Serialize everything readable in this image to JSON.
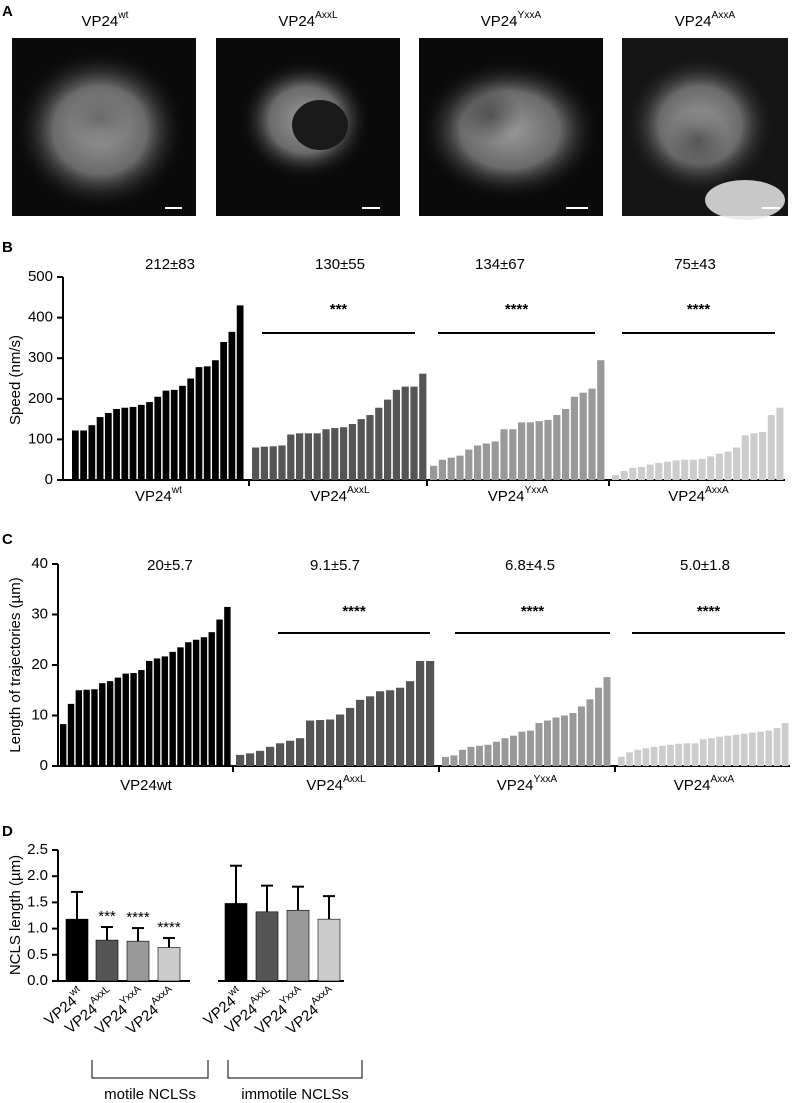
{
  "panel_labels": [
    "A",
    "B",
    "C",
    "D"
  ],
  "images": [
    {
      "label": {
        "text": "VP24",
        "sup": "wt"
      }
    },
    {
      "label": {
        "text": "VP24",
        "sup": "AxxL"
      }
    },
    {
      "label": {
        "text": "VP24",
        "sup": "YxxA"
      }
    },
    {
      "label": {
        "text": "VP24",
        "sup": "AxxA"
      }
    }
  ],
  "chart_data": [
    {
      "type": "bar",
      "y_label": "Speed (nm/s)",
      "ylim": [
        0,
        500
      ],
      "yticks": [
        0,
        100,
        200,
        300,
        400,
        500
      ],
      "series": [
        {
          "label": {
            "text": "VP24",
            "sup": "wt"
          },
          "color": "#000000",
          "annotation": "212±83",
          "values": [
            122,
            122,
            135,
            155,
            165,
            175,
            178,
            180,
            185,
            192,
            205,
            220,
            222,
            232,
            250,
            278,
            280,
            295,
            340,
            365,
            430
          ]
        },
        {
          "label": {
            "text": "VP24",
            "sup": "AxxL"
          },
          "color": "#555555",
          "annotation": "130±55",
          "significance": "***",
          "values": [
            80,
            82,
            83,
            85,
            112,
            115,
            115,
            115,
            125,
            128,
            130,
            138,
            150,
            160,
            178,
            198,
            222,
            230,
            230,
            262
          ]
        },
        {
          "label": {
            "text": "VP24",
            "sup": "YxxA"
          },
          "color": "#999999",
          "annotation": "134±67",
          "significance": "****",
          "values": [
            35,
            50,
            55,
            60,
            75,
            85,
            90,
            95,
            125,
            125,
            142,
            142,
            145,
            148,
            160,
            175,
            205,
            215,
            225,
            295
          ]
        },
        {
          "label": {
            "text": "VP24",
            "sup": "AxxA"
          },
          "color": "#cccccc",
          "annotation": "75±43",
          "significance": "****",
          "values": [
            12,
            22,
            30,
            32,
            38,
            42,
            45,
            48,
            50,
            50,
            52,
            58,
            65,
            70,
            80,
            110,
            115,
            118,
            160,
            178
          ]
        }
      ]
    },
    {
      "type": "bar",
      "y_label": "Length of trajectories (µm)",
      "ylim": [
        0,
        40
      ],
      "yticks": [
        0,
        10,
        20,
        30,
        40
      ],
      "series": [
        {
          "label": "VP24wt",
          "color": "#000000",
          "annotation": "20±5.7",
          "values": [
            8.3,
            12.3,
            15,
            15.1,
            15.2,
            16.4,
            16.8,
            17.5,
            18.3,
            18.4,
            19,
            20.8,
            21.3,
            21.7,
            22.6,
            23.5,
            24.5,
            25,
            25.5,
            26.5,
            29,
            31.5
          ]
        },
        {
          "label": {
            "text": "VP24",
            "sup": "AxxL"
          },
          "color": "#555555",
          "annotation": "9.1±5.7",
          "significance": "****",
          "values": [
            2.2,
            2.5,
            3,
            3.8,
            4.5,
            5,
            5.5,
            9,
            9.1,
            9.2,
            10.2,
            11.5,
            13.1,
            13.8,
            14.8,
            15,
            15.5,
            16.8,
            20.8,
            20.8
          ]
        },
        {
          "label": {
            "text": "VP24",
            "sup": "YxxA"
          },
          "color": "#999999",
          "annotation": "6.8±4.5",
          "significance": "****",
          "values": [
            1.8,
            2.1,
            3.2,
            3.8,
            4,
            4.2,
            4.8,
            5.5,
            6,
            6.8,
            7,
            8.5,
            9,
            9.6,
            10,
            10.5,
            11.8,
            13.2,
            15.5,
            17.6
          ]
        },
        {
          "label": {
            "text": "VP24",
            "sup": "AxxA"
          },
          "color": "#cccccc",
          "annotation": "5.0±1.8",
          "significance": "****",
          "values": [
            1.8,
            2.7,
            3.2,
            3.5,
            3.8,
            4,
            4.2,
            4.4,
            4.5,
            4.5,
            5.3,
            5.5,
            5.8,
            6,
            6.2,
            6.4,
            6.6,
            6.8,
            7,
            7.5,
            8.5
          ]
        }
      ]
    },
    {
      "type": "bar",
      "y_label": "NCLS length (µm)",
      "ylim": [
        0,
        2.5
      ],
      "yticks": [
        {
          "value": 0,
          "label": "0.0"
        },
        0.5,
        {
          "value": 1,
          "label": "1.0"
        },
        1.5,
        {
          "value": 2,
          "label": "2.0"
        },
        2.5
      ],
      "categories": [
        {
          "text": "VP24",
          "sup": "wt"
        },
        {
          "text": "VP24",
          "sup": "AxxL"
        },
        {
          "text": "VP24",
          "sup": "YxxA"
        },
        {
          "text": "VP24",
          "sup": "AxxA"
        },
        {
          "text": "VP24",
          "sup": "wt"
        },
        {
          "text": "VP24",
          "sup": "AxxL"
        },
        {
          "text": "VP24",
          "sup": "YxxA"
        },
        {
          "text": "VP24",
          "sup": "AxxA"
        }
      ],
      "values": [
        1.18,
        0.78,
        0.76,
        0.64,
        1.48,
        1.32,
        1.35,
        1.18
      ],
      "errors": [
        0.52,
        0.25,
        0.25,
        0.18,
        0.72,
        0.5,
        0.45,
        0.44
      ],
      "colors": [
        "#000000",
        "#555555",
        "#999999",
        "#cccccc",
        "#000000",
        "#555555",
        "#999999",
        "#cccccc"
      ],
      "significance": [
        null,
        "***",
        "****",
        "****",
        null,
        null,
        null,
        null
      ],
      "groups": [
        "motile NCLSs",
        "immotile NCLSs"
      ]
    }
  ]
}
